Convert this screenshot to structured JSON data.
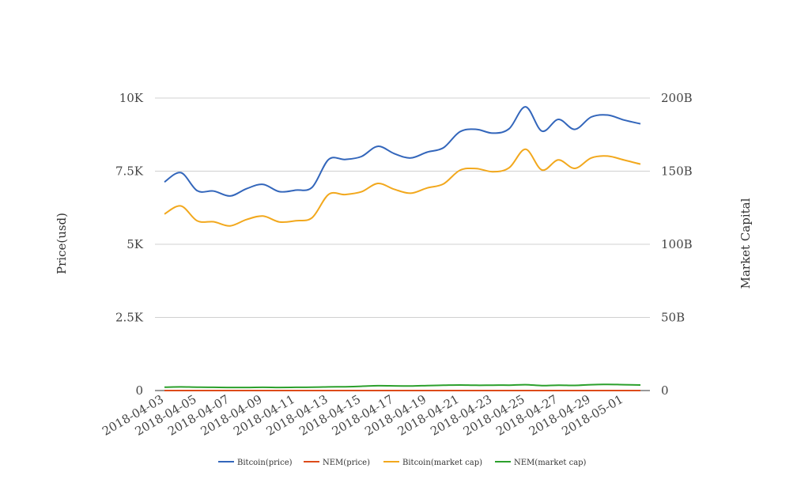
{
  "chart_data": {
    "type": "line",
    "title": "",
    "xlabel": "",
    "ylabel": "Price(usd)",
    "y2label": "Market Capital",
    "ylim": [
      0,
      10000
    ],
    "y2lim": [
      0,
      200000000000
    ],
    "grid": true,
    "legend_position": "bottom",
    "x": [
      "2018-04-03",
      "2018-04-04",
      "2018-04-05",
      "2018-04-06",
      "2018-04-07",
      "2018-04-08",
      "2018-04-09",
      "2018-04-10",
      "2018-04-11",
      "2018-04-12",
      "2018-04-13",
      "2018-04-14",
      "2018-04-15",
      "2018-04-16",
      "2018-04-17",
      "2018-04-18",
      "2018-04-19",
      "2018-04-20",
      "2018-04-21",
      "2018-04-22",
      "2018-04-23",
      "2018-04-24",
      "2018-04-25",
      "2018-04-26",
      "2018-04-27",
      "2018-04-28",
      "2018-04-29",
      "2018-04-30",
      "2018-05-01",
      "2018-05-02"
    ],
    "x_tick_labels": [
      "2018-04-03",
      "2018-04-05",
      "2018-04-07",
      "2018-04-09",
      "2018-04-11",
      "2018-04-13",
      "2018-04-15",
      "2018-04-17",
      "2018-04-19",
      "2018-04-21",
      "2018-04-23",
      "2018-04-25",
      "2018-04-27",
      "2018-04-29",
      "2018-05-01"
    ],
    "y_tick_labels": [
      "0",
      "2.5K",
      "5K",
      "7.5K",
      "10K"
    ],
    "y2_tick_labels": [
      "0",
      "50B",
      "100B",
      "150B",
      "200B"
    ],
    "series": [
      {
        "name": "Bitcoin(price)",
        "axis": "left",
        "color": "#3366bb",
        "values": [
          7130,
          7450,
          6830,
          6820,
          6650,
          6900,
          7050,
          6800,
          6850,
          6950,
          7900,
          7900,
          8000,
          8350,
          8100,
          7950,
          8150,
          8300,
          8850,
          8930,
          8800,
          8950,
          9700,
          8870,
          9270,
          8930,
          9350,
          9420,
          9250,
          9120
        ]
      },
      {
        "name": "NEM(price)",
        "axis": "left",
        "color": "#dd4b1a",
        "values": [
          0.25,
          0.26,
          0.24,
          0.24,
          0.24,
          0.24,
          0.24,
          0.23,
          0.23,
          0.24,
          0.26,
          0.27,
          0.3,
          0.31,
          0.31,
          0.31,
          0.32,
          0.33,
          0.33,
          0.32,
          0.33,
          0.33,
          0.34,
          0.32,
          0.33,
          0.33,
          0.34,
          0.34,
          0.33,
          0.32
        ]
      },
      {
        "name": "Bitcoin(market cap)",
        "axis": "right",
        "color": "#f2a81d",
        "values": [
          120700000000,
          126200000000,
          116000000000,
          115400000000,
          112600000000,
          116900000000,
          119300000000,
          115300000000,
          116100000000,
          118200000000,
          134100000000,
          134000000000,
          135900000000,
          141600000000,
          137600000000,
          134900000000,
          138500000000,
          141300000000,
          150600000000,
          151800000000,
          149600000000,
          152300000000,
          165000000000,
          150800000000,
          157700000000,
          151900000000,
          159000000000,
          160300000000,
          157600000000,
          154800000000
        ]
      },
      {
        "name": "NEM(market cap)",
        "axis": "right",
        "color": "#2ca02c",
        "values": [
          2300000000,
          2500000000,
          2300000000,
          2200000000,
          2100000000,
          2100000000,
          2200000000,
          2100000000,
          2200000000,
          2300000000,
          2500000000,
          2600000000,
          2900000000,
          3300000000,
          3200000000,
          3100000000,
          3400000000,
          3600000000,
          3800000000,
          3600000000,
          3700000000,
          3700000000,
          4000000000,
          3400000000,
          3700000000,
          3500000000,
          4000000000,
          4200000000,
          4000000000,
          3800000000
        ]
      }
    ]
  }
}
